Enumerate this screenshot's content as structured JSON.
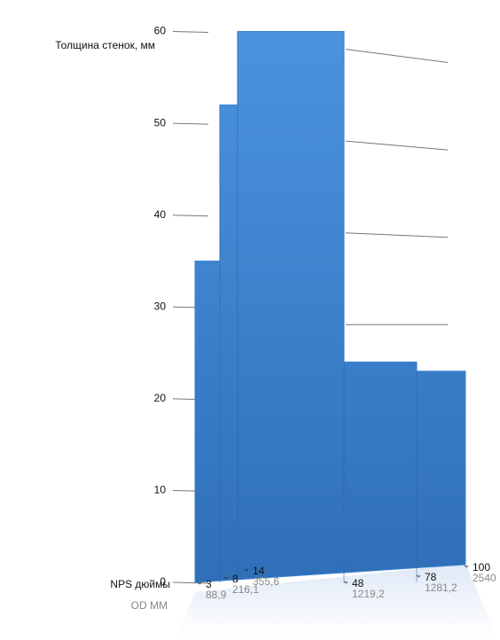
{
  "chart_data": {
    "type": "step-area",
    "y_label": "Толщина стенок, мм",
    "x_label": "NPS дюймы",
    "x2_label": "OD ММ",
    "categories": [
      "3",
      "8",
      "14",
      "48",
      "78",
      "100"
    ],
    "od": [
      "88,9",
      "216,1",
      "355,6",
      "1219,2",
      "1281,2",
      "2540"
    ],
    "values": [
      35,
      52,
      60,
      24,
      23,
      23
    ],
    "color": "#3d84d2",
    "ylim": [
      0,
      61.5
    ],
    "yticks": [
      0,
      10,
      20,
      30,
      40,
      50,
      60
    ],
    "grid": true
  }
}
